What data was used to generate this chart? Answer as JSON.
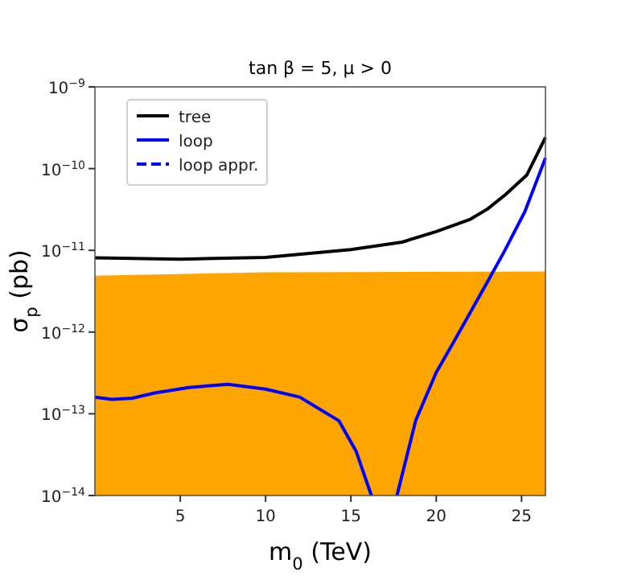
{
  "chart_data": {
    "type": "line",
    "title": "tan β = 5, μ > 0",
    "xlabel": "m$_{0}$  (TeV)",
    "ylabel": "σ$_{p}$  (pb)",
    "log": "y",
    "xlim": [
      0,
      26.4
    ],
    "ylim": [
      1e-14,
      1e-09
    ],
    "xticks": [
      5,
      10,
      15,
      20,
      25
    ],
    "yticks": [
      {
        "value": 1e-14,
        "label": "10$^{−14}$"
      },
      {
        "value": 1e-13,
        "label": "10$^{−13}$"
      },
      {
        "value": 1e-12,
        "label": "10$^{−12}$"
      },
      {
        "value": 1e-11,
        "label": "10$^{−11}$"
      },
      {
        "value": 1e-10,
        "label": "10$^{−10}$"
      },
      {
        "value": 1e-09,
        "label": "10$^{−9}$"
      }
    ],
    "grid": false,
    "legend": "top left",
    "series": [
      {
        "type": "area",
        "color": "#ffa500",
        "x": [
          0,
          10,
          26.4
        ],
        "values": [
          4.9e-12,
          5.4e-12,
          5.5e-12
        ]
      },
      {
        "name": "tree",
        "color": "#000000",
        "line_style": "solid",
        "x": [
          0,
          5,
          10,
          15,
          18,
          20,
          22,
          23,
          24,
          25.3,
          26.4
        ],
        "values": [
          8.1e-12,
          7.8e-12,
          8.2e-12,
          1.02e-11,
          1.26e-11,
          1.7e-11,
          2.4e-11,
          3.2e-11,
          4.7e-11,
          8.3e-11,
          2.4e-10
        ]
      },
      {
        "name": "loop",
        "color": "#0000ff",
        "line_style": "solid",
        "x": [
          0,
          1,
          2.2,
          3.5,
          5.5,
          7.8,
          10,
          12,
          14.3,
          15.3,
          16.2,
          17,
          17.7,
          18.8,
          20,
          21,
          23,
          24,
          25.2,
          26.4
        ],
        "values": [
          1.6e-13,
          1.5e-13,
          1.55e-13,
          1.8e-13,
          2.1e-13,
          2.3e-13,
          2e-13,
          1.6e-13,
          8.2e-14,
          3.5e-14,
          1e-14,
          null,
          1e-14,
          8.3e-14,
          3.2e-13,
          7.4e-13,
          4.1e-12,
          9.8e-12,
          3e-11,
          1.35e-10
        ]
      },
      {
        "name": "loop appr.",
        "color": "#0000ff",
        "line_style": "dashed"
      }
    ]
  }
}
